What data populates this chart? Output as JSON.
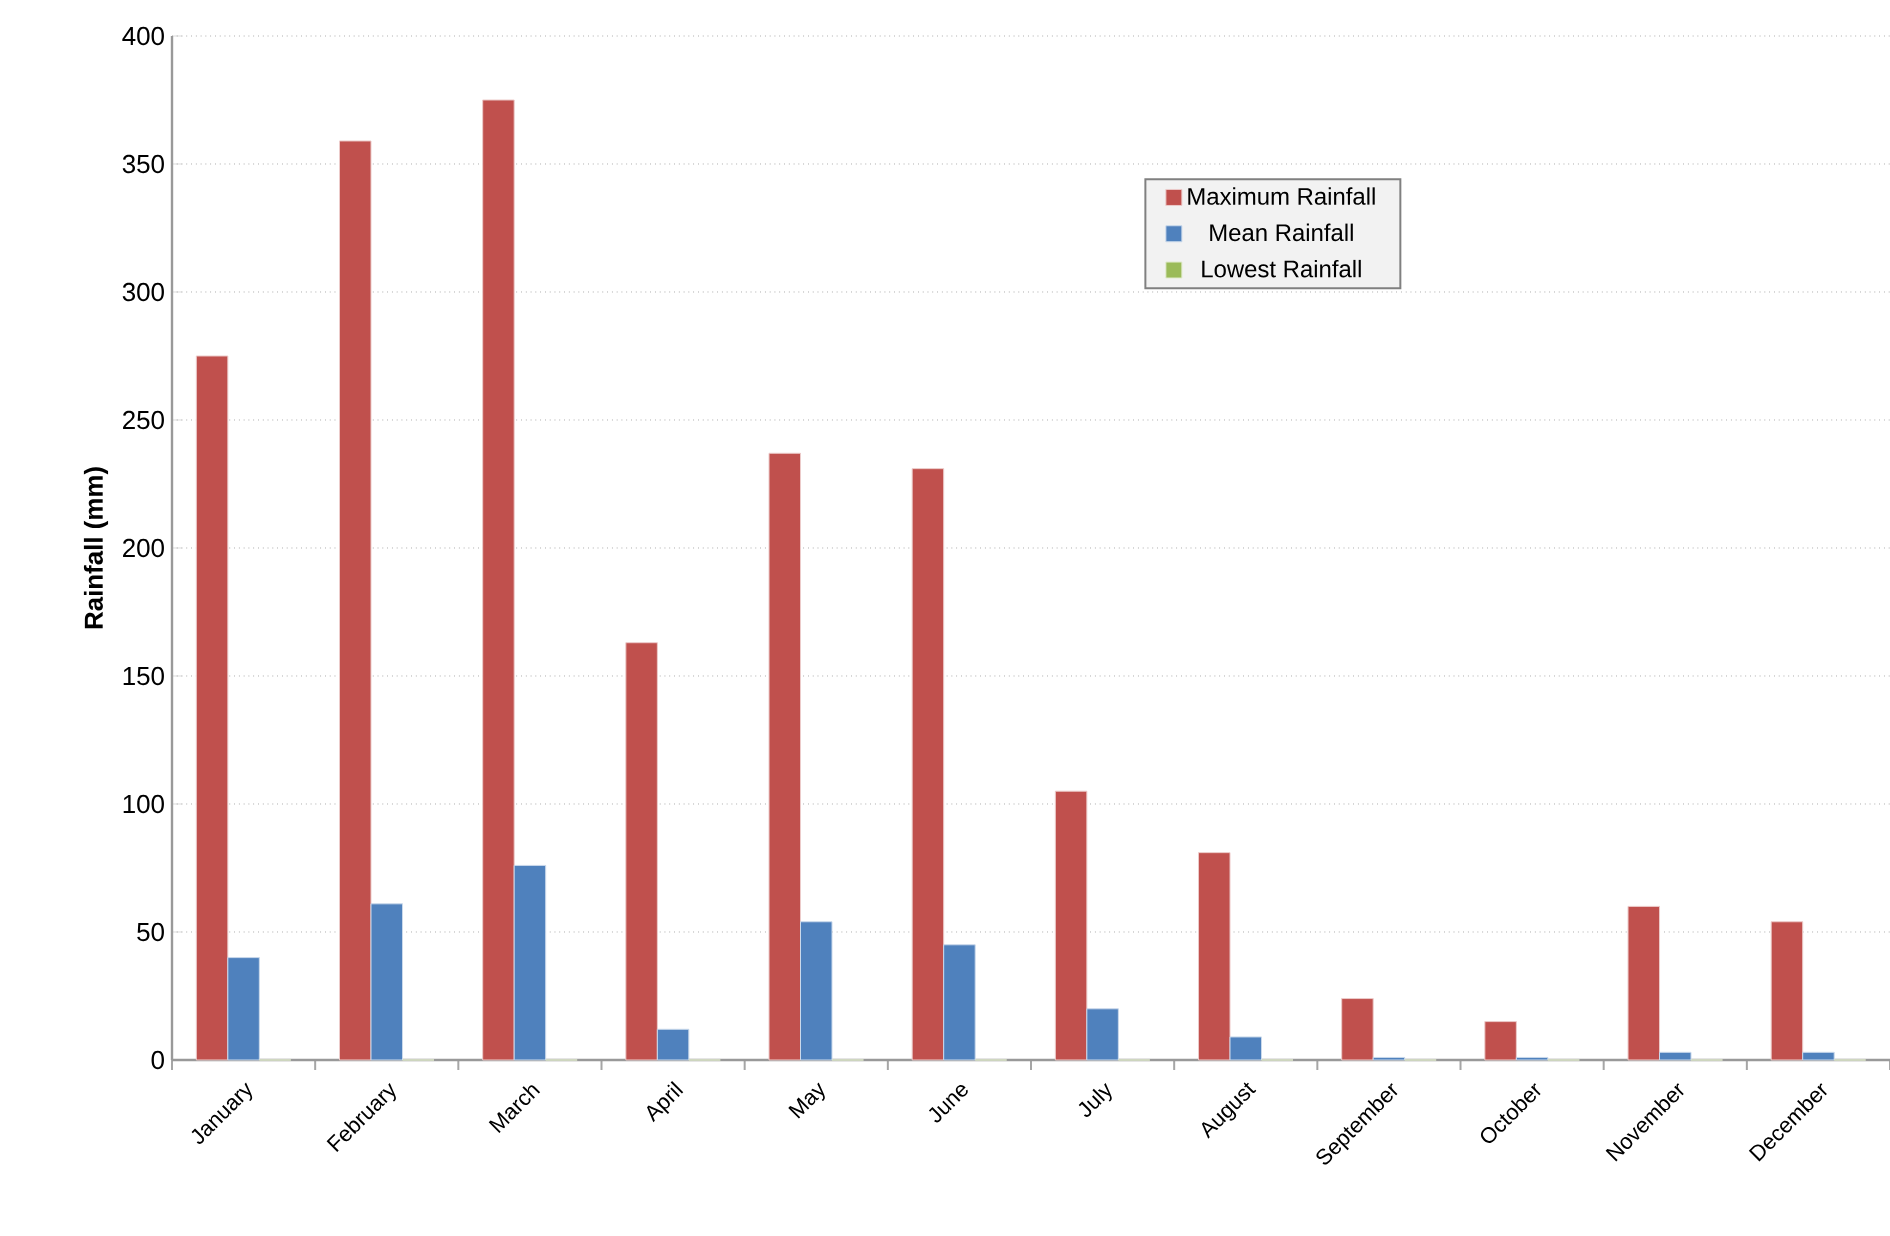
{
  "chart_data": {
    "type": "bar",
    "ylabel": "Rainfall (mm)",
    "categories": [
      "January",
      "February",
      "March",
      "April",
      "May",
      "June",
      "July",
      "August",
      "September",
      "October",
      "November",
      "December"
    ],
    "series": [
      {
        "name": "Maximum Rainfall",
        "color": "#c0504d",
        "values": [
          275,
          359,
          375,
          163,
          237,
          231,
          105,
          81,
          24,
          15,
          60,
          54
        ]
      },
      {
        "name": "Mean Rainfall",
        "color": "#4f81bd",
        "values": [
          40,
          61,
          76,
          12,
          54,
          45,
          20,
          9,
          1,
          1,
          3,
          3
        ]
      },
      {
        "name": "Lowest Rainfall",
        "color": "#9bbb59",
        "values": [
          0,
          0,
          0,
          0,
          0,
          0,
          0,
          0,
          0,
          0,
          0,
          0
        ]
      }
    ],
    "ylim": [
      0,
      400
    ],
    "yticks": [
      0,
      50,
      100,
      150,
      200,
      250,
      300,
      350,
      400
    ],
    "grid": "y",
    "legend": "top right"
  }
}
